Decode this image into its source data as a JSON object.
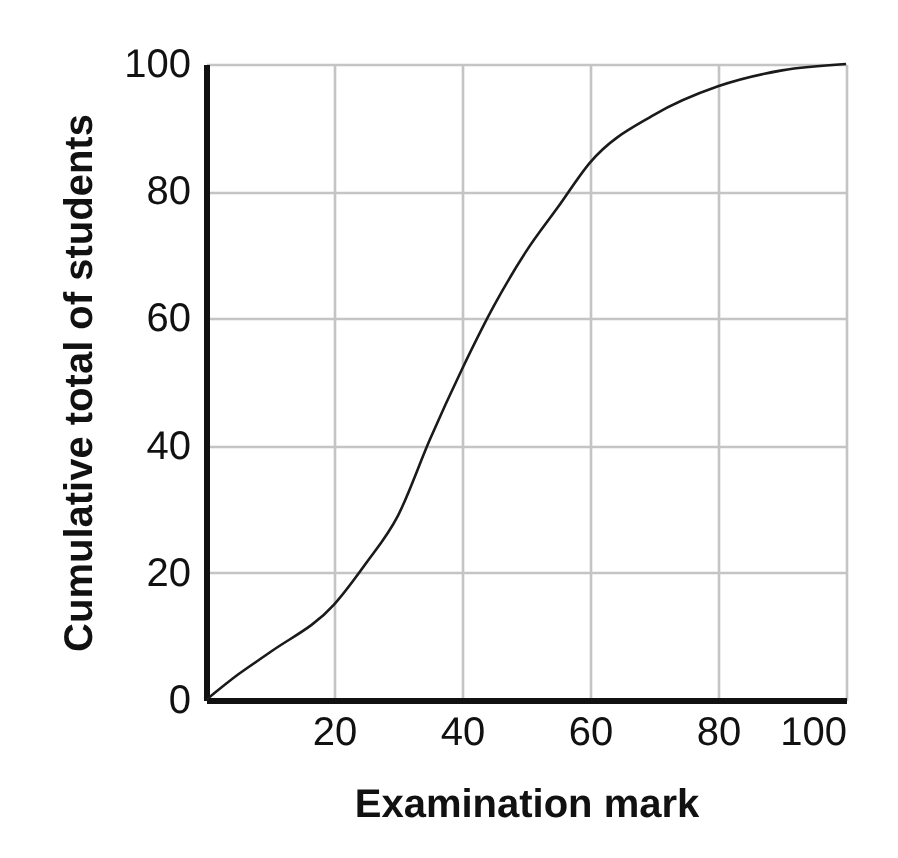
{
  "chart_data": {
    "type": "line",
    "xlabel": "Examination mark",
    "ylabel": "Cumulative total of students",
    "x": [
      0,
      5,
      10,
      20,
      25,
      30,
      35,
      40,
      45,
      50,
      55,
      60,
      70,
      80,
      90,
      100
    ],
    "series": [
      {
        "color": "#1a1a1a",
        "values": [
          0,
          4,
          7.5,
          15,
          21.5,
          29,
          41,
          52,
          62,
          70.5,
          77.5,
          84.5,
          92,
          96.5,
          99,
          100
        ]
      }
    ],
    "xlim": [
      0,
      100
    ],
    "xticks": [
      20,
      40,
      60,
      80,
      100
    ],
    "ylim": [
      0,
      100
    ],
    "yticks": [
      0,
      20,
      40,
      60,
      80,
      100
    ],
    "grid": true,
    "marker": "none",
    "line_style": "solid"
  }
}
